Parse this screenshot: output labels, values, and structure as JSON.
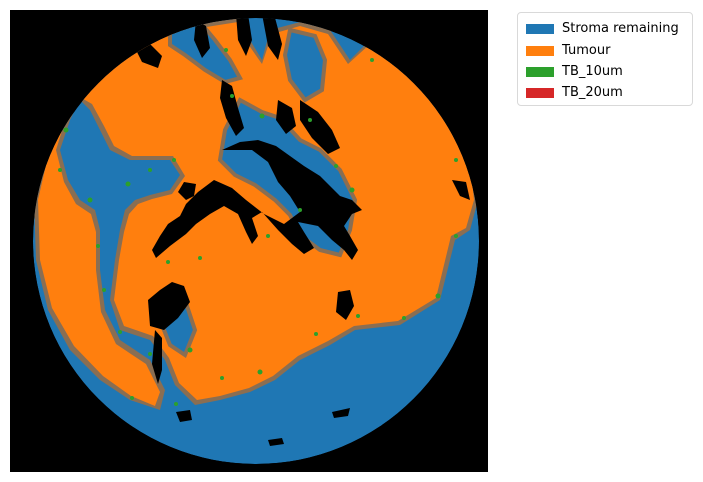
{
  "legend": {
    "items": [
      {
        "label": "Stroma remaining",
        "color": "#1f77b4"
      },
      {
        "label": "Tumour",
        "color": "#ff7f0e"
      },
      {
        "label": "TB_10um",
        "color": "#2ca02c"
      },
      {
        "label": "TB_20um",
        "color": "#d62728"
      }
    ]
  },
  "colors": {
    "background": "#000000",
    "stroma": "#1f77b4",
    "tumour": "#ff7f0e",
    "tb10": "#2ca02c",
    "tb20": "#d62728",
    "boundary": "#8a6e52"
  }
}
